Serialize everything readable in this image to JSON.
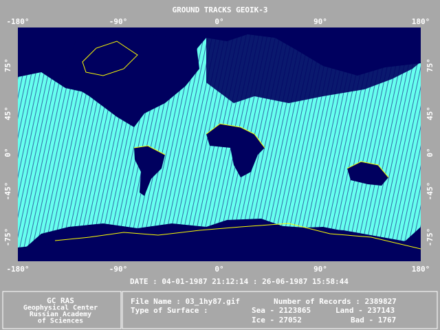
{
  "title": "GROUND TRACKS GEOIK-3",
  "top_axis": [
    "-180°",
    "-90°",
    "0°",
    "90°",
    "180°"
  ],
  "bottom_axis": [
    "-180°",
    "-90°",
    "0°",
    "90°",
    "180°"
  ],
  "left_axis": [
    "75°",
    "45°",
    "0°",
    "-45°",
    "-75°"
  ],
  "right_axis": [
    "75°",
    "45°",
    "0°",
    "-45°",
    "-75°"
  ],
  "date": "DATE : 04-01-1987 21:12:14 : 26-06-1987 15:58:44",
  "institution": [
    "GC RAS",
    "Geophysical Center",
    "Russian Academy",
    "of Sciences"
  ],
  "file_info": {
    "file_name": "File Name : 03_1hy87.gif",
    "records": "Number of Records : 2389827",
    "surface": "Type of Surface :",
    "sea": "Sea - 2123865",
    "land": "Land - 237143",
    "ice": "Ice - 27052",
    "bad": "Bad - 1767"
  }
}
